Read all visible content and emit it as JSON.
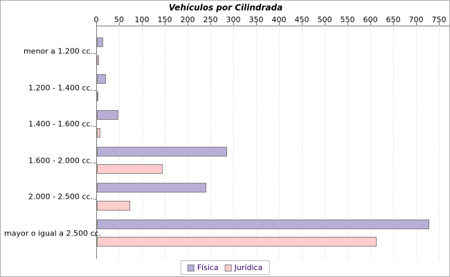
{
  "chart_data": {
    "type": "bar",
    "orientation": "horizontal",
    "title": "Vehículos por Cilindrada",
    "categories": [
      "menor a 1.200 cc.",
      "1.200 - 1.400 cc.",
      "1.400 - 1.600 cc.",
      "1.600 - 2.000 cc.",
      "2.000 - 2.500 cc.",
      "mayor o igual a 2.500 cc."
    ],
    "series": [
      {
        "name": "Física",
        "color": "#b8aed6",
        "border_color": "#808080",
        "values": [
          13,
          19,
          47,
          285,
          239,
          728
        ]
      },
      {
        "name": "Jurídica",
        "color": "#ffcdcd",
        "border_color": "#808080",
        "values": [
          5,
          2,
          8,
          144,
          73,
          612
        ]
      }
    ],
    "value_axis": {
      "position": "top",
      "min": 0,
      "max": 750,
      "tick_interval": 50,
      "tick_labels": [
        "0",
        "50",
        "100",
        "150",
        "200",
        "250",
        "300",
        "350",
        "400",
        "450",
        "500",
        "550",
        "600",
        "650",
        "700",
        "750"
      ]
    },
    "grid": true,
    "gridline_style": "dashed",
    "legend_position": "bottom"
  },
  "colors": {
    "background": "#ffffff",
    "frame_border": "#aaaaaa",
    "axis": "#777777",
    "gridline": "#dddddd",
    "title_text": "#000000",
    "axis_text": "#000000",
    "legend_text": "#330066",
    "legend_border": "#b8b8c8"
  }
}
